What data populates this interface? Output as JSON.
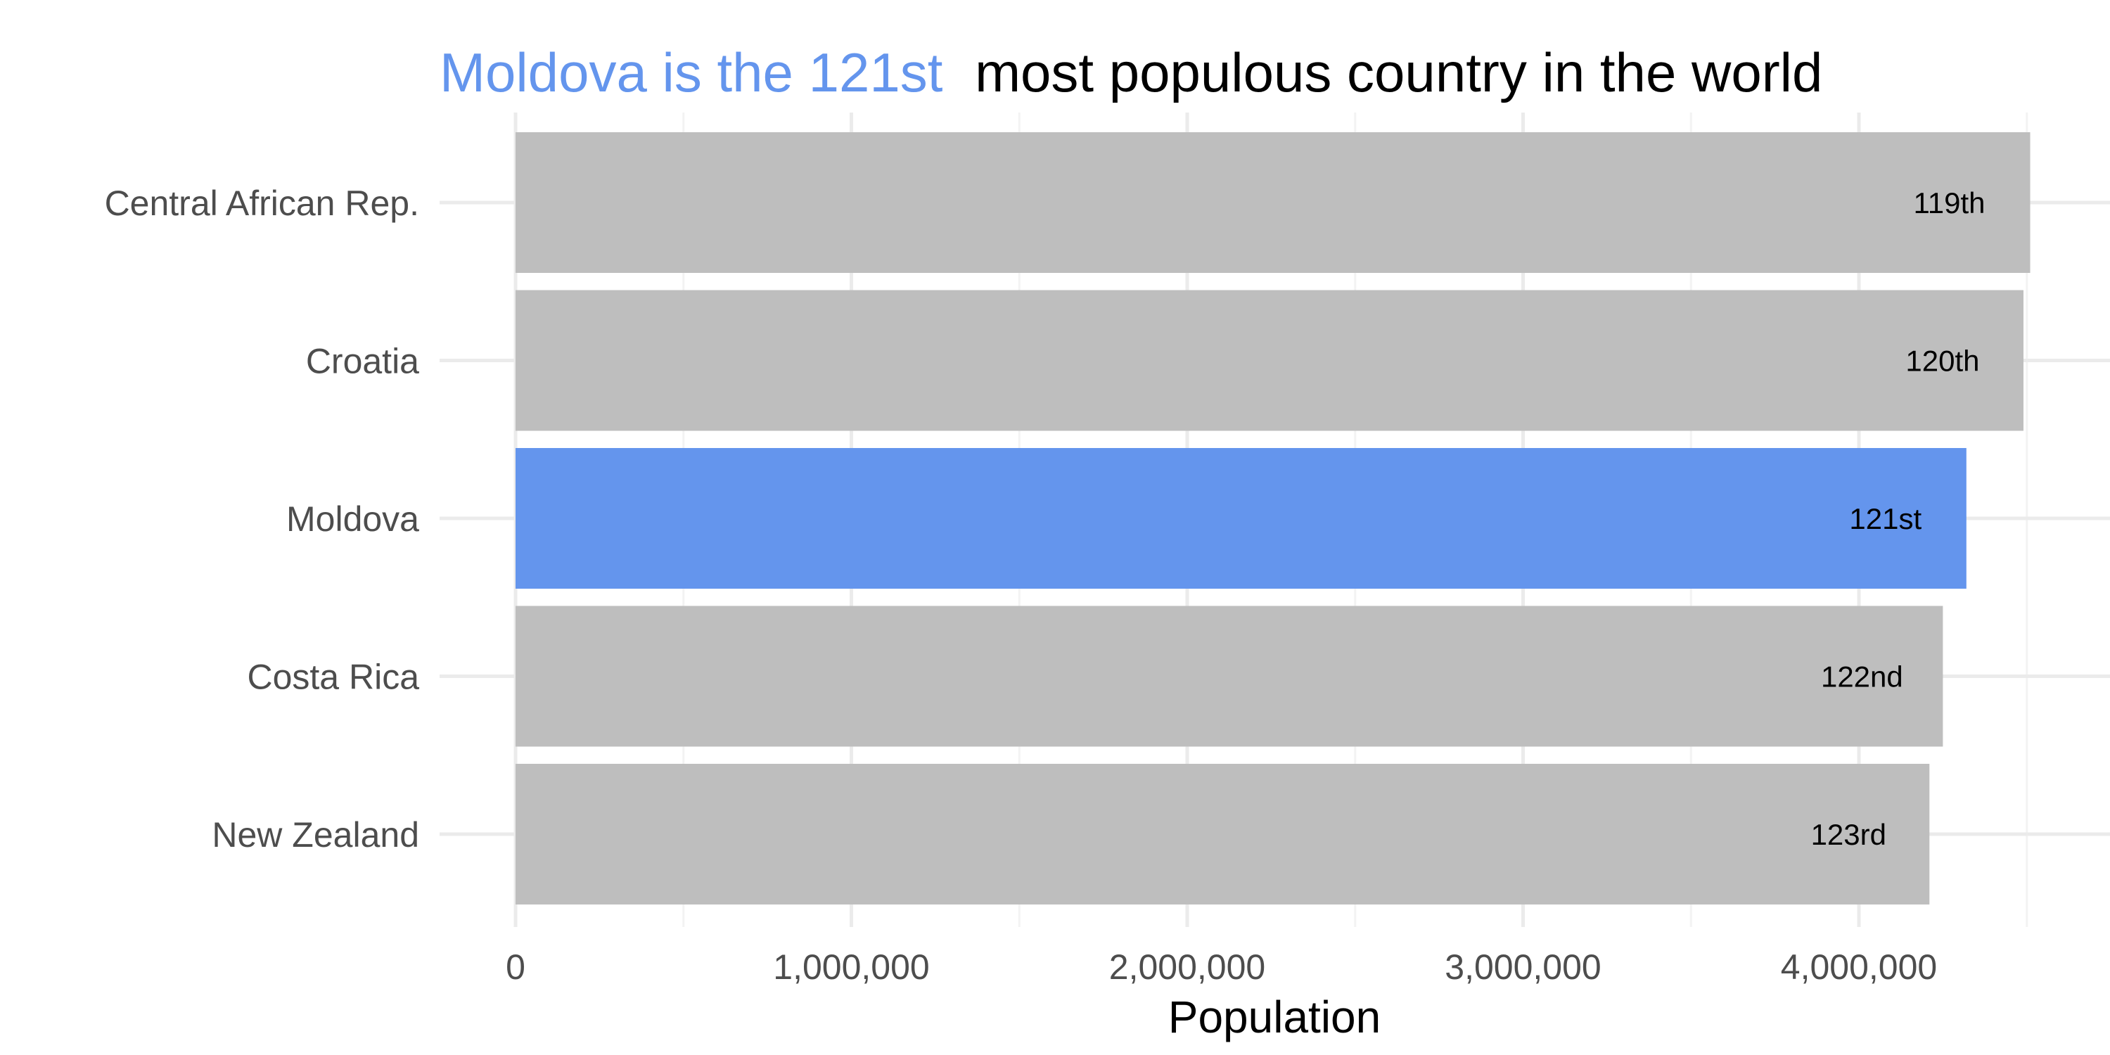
{
  "chart_data": {
    "type": "bar",
    "orientation": "horizontal",
    "title": {
      "highlight": "Moldova is the 121st",
      "rest": "most populous country in the world"
    },
    "xlabel": "Population",
    "ylabel": "",
    "categories": [
      "Central African Rep.",
      "Croatia",
      "Moldova",
      "Costa Rica",
      "New Zealand"
    ],
    "values": [
      4510000,
      4490000,
      4320000,
      4250000,
      4210000
    ],
    "bar_labels": [
      "119th",
      "120th",
      "121st",
      "122nd",
      "123rd"
    ],
    "highlight_index": 2,
    "xlim": [
      0,
      4600000
    ],
    "xticks": [
      0,
      1000000,
      2000000,
      3000000,
      4000000
    ],
    "xtick_labels": [
      "0",
      "1,000,000",
      "2,000,000",
      "3,000,000",
      "4,000,000"
    ],
    "grid": true,
    "legend": "none",
    "colors": {
      "highlight": "#6495ED",
      "default_bar": "#BEBEBE",
      "grid_major": "#EBEBEB",
      "grid_minor": "#F3F3F3",
      "title_rest": "#000000"
    }
  }
}
